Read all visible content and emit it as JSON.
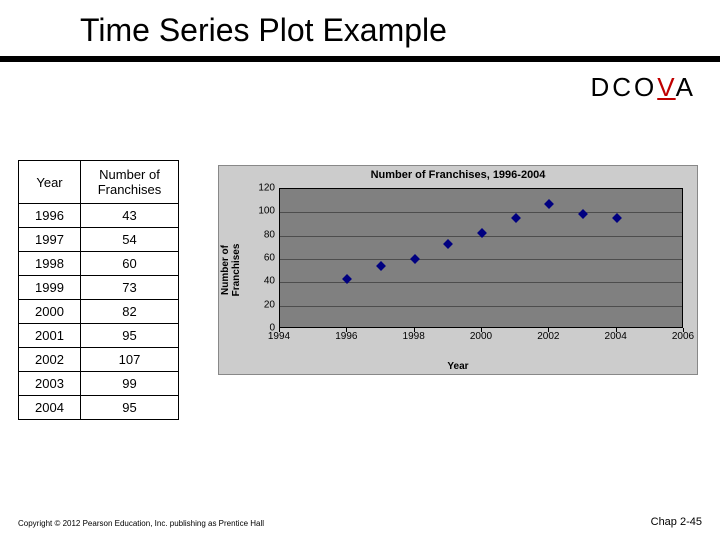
{
  "title": "Time Series Plot Example",
  "dcova": {
    "pre": "DCO",
    "v": "V",
    "post": "A"
  },
  "table": {
    "headers": [
      "Year",
      "Number of Franchises"
    ],
    "rows": [
      [
        "1996",
        "43"
      ],
      [
        "1997",
        "54"
      ],
      [
        "1998",
        "60"
      ],
      [
        "1999",
        "73"
      ],
      [
        "2000",
        "82"
      ],
      [
        "2001",
        "95"
      ],
      [
        "2002",
        "107"
      ],
      [
        "2003",
        "99"
      ],
      [
        "2004",
        "95"
      ]
    ]
  },
  "chart": {
    "type": "scatter",
    "title": "Number of Franchises, 1996-2004",
    "ylabel": "Number of\nFranchises",
    "xlabel": "Year",
    "xlim": [
      1994,
      2006
    ],
    "ylim": [
      0,
      120
    ],
    "xtick_step": 2,
    "ytick_step": 20,
    "xticks": [
      1994,
      1996,
      1998,
      2000,
      2002,
      2004,
      2006
    ],
    "yticks": [
      0,
      20,
      40,
      60,
      80,
      100,
      120
    ],
    "bg_outer": "#cccccc",
    "bg_plot": "#808080",
    "grid_color": "#000000",
    "point_color": "#000080",
    "marker": "diamond",
    "marker_size": 7,
    "title_fontsize": 11,
    "label_fontsize": 10,
    "tick_fontsize": 10,
    "points": [
      {
        "x": 1996,
        "y": 43
      },
      {
        "x": 1997,
        "y": 54
      },
      {
        "x": 1998,
        "y": 60
      },
      {
        "x": 1999,
        "y": 73
      },
      {
        "x": 2000,
        "y": 82
      },
      {
        "x": 2001,
        "y": 95
      },
      {
        "x": 2002,
        "y": 107
      },
      {
        "x": 2003,
        "y": 99
      },
      {
        "x": 2004,
        "y": 95
      }
    ]
  },
  "footer": {
    "left": "Copyright © 2012 Pearson Education, Inc. publishing as Prentice Hall",
    "right": "Chap 2-45"
  }
}
